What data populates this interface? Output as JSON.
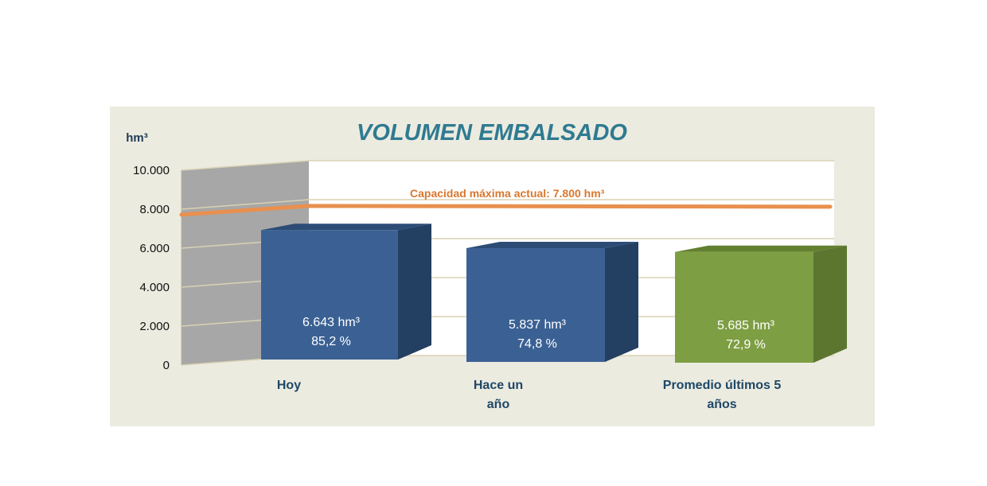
{
  "chart_data": {
    "type": "bar",
    "title": "VOLUMEN EMBALSADO",
    "ylabel": "hm³",
    "ylim": [
      0,
      10000
    ],
    "yticks": [
      {
        "value": 0,
        "label": "0"
      },
      {
        "value": 2000,
        "label": "2.000"
      },
      {
        "value": 4000,
        "label": "4.000"
      },
      {
        "value": 6000,
        "label": "6.000"
      },
      {
        "value": 8000,
        "label": "8.000"
      },
      {
        "value": 10000,
        "label": "10.000"
      }
    ],
    "grid": true,
    "categories": [
      {
        "lines": [
          "Hoy"
        ]
      },
      {
        "lines": [
          "Hace un",
          "año"
        ]
      },
      {
        "lines": [
          "Promedio últimos 5",
          "años"
        ]
      }
    ],
    "values": [
      6643,
      5837,
      5685
    ],
    "data_labels": [
      {
        "volume": "6.643 hm³",
        "percent": "85,2 %"
      },
      {
        "volume": "5.837 hm³",
        "percent": "74,8 %"
      },
      {
        "volume": "5.685 hm³",
        "percent": "72,9 %"
      }
    ],
    "bar_colors": [
      {
        "front": "#3b6194",
        "side": "#233f61",
        "top": "#2c4c76"
      },
      {
        "front": "#3b6194",
        "side": "#233f61",
        "top": "#2c4c76"
      },
      {
        "front": "#7e9e43",
        "side": "#5c7630",
        "top": "#62802f"
      }
    ],
    "capacity": {
      "value": 7800,
      "label": "Capacidad máxima actual: 7.800 hm³",
      "color": "#e8904f"
    },
    "colors": {
      "panel": "#ecebe0",
      "plot": "#ffffff",
      "side_wall": "#a7a7a7",
      "grid": "#d8d2b4"
    }
  }
}
